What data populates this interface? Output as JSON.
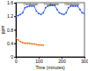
{
  "chart_data": {
    "type": "line",
    "x_label": "Time (minutes)",
    "y_label": "ppm",
    "x": [
      0,
      10,
      20,
      30,
      40,
      50,
      60,
      70,
      80,
      90,
      100,
      110,
      120,
      130,
      140,
      150,
      160,
      170,
      180,
      190,
      200,
      210,
      220,
      230,
      240,
      250,
      260,
      270,
      280,
      290,
      300
    ],
    "series": [
      {
        "color": "#1f4fd8",
        "marker": "circle",
        "values": [
          1.2,
          1.22,
          1.25,
          1.3,
          1.45,
          1.48,
          1.5,
          1.5,
          1.5,
          1.35,
          1.28,
          1.25,
          1.3,
          1.45,
          1.5,
          1.52,
          1.52,
          1.52,
          1.4,
          1.3,
          1.27,
          1.25,
          1.3,
          1.45,
          1.5,
          1.5,
          1.5,
          1.5,
          1.4,
          1.3,
          1.28
        ]
      },
      {
        "color": "#ff6a1a",
        "marker": "circle",
        "values": [
          0.55,
          0.5,
          0.45,
          0.42,
          0.4,
          0.4,
          0.4,
          0.38,
          0.38,
          0.36,
          0.35,
          0.35,
          0.34,
          null,
          null,
          null,
          null,
          null,
          null,
          null,
          null,
          null,
          null,
          null,
          null,
          null,
          null,
          null,
          null,
          null,
          null
        ]
      }
    ],
    "annotations": [
      {
        "text": "Oxidation",
        "x": 65,
        "y": 1.57
      },
      {
        "text": "Oxidation",
        "x": 155,
        "y": 1.57
      },
      {
        "text": "Oxidation",
        "x": 245,
        "y": 1.57
      }
    ],
    "xlim": [
      0,
      300
    ],
    "xticks": [
      0,
      100,
      200,
      300
    ],
    "ylim": [
      0,
      1.6
    ],
    "yticks": [
      0,
      0.4,
      0.8,
      1.2,
      1.6
    ]
  }
}
